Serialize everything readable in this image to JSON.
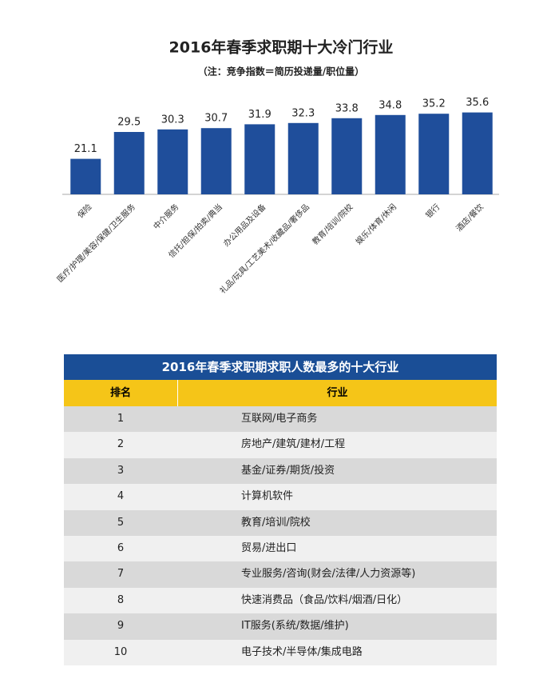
{
  "chart_data": {
    "type": "bar",
    "title": "2016年春季求职期十大冷门行业",
    "subtitle": "（注：竞争指数＝简历投递量/职位量）",
    "categories": [
      "保险",
      "医疗/护理/美容/保健/卫生服务",
      "中介服务",
      "信托/担保/拍卖/典当",
      "办公用品及设备",
      "礼品/玩具/工艺美术/收藏品/奢侈品",
      "教育/培训/院校",
      "娱乐/体育/休闲",
      "银行",
      "酒店/餐饮"
    ],
    "values": [
      21.1,
      29.5,
      30.3,
      30.7,
      31.9,
      32.3,
      33.8,
      34.8,
      35.2,
      35.6
    ],
    "color": "#1f4e9b",
    "ylim": [
      10,
      40
    ]
  },
  "table": {
    "title": "2016年春季求职期求职人数最多的十大行业",
    "headers": [
      "排名",
      "行业"
    ],
    "rows": [
      [
        1,
        "互联网/电子商务"
      ],
      [
        2,
        "房地产/建筑/建材/工程"
      ],
      [
        3,
        "基金/证券/期货/投资"
      ],
      [
        4,
        "计算机软件"
      ],
      [
        5,
        "教育/培训/院校"
      ],
      [
        6,
        "贸易/进出口"
      ],
      [
        7,
        "专业服务/咨询(财会/法律/人力资源等)"
      ],
      [
        8,
        "快速消费品（食品/饮料/烟酒/日化）"
      ],
      [
        9,
        "IT服务(系统/数据/维护)"
      ],
      [
        10,
        "电子技术/半导体/集成电路"
      ]
    ]
  }
}
